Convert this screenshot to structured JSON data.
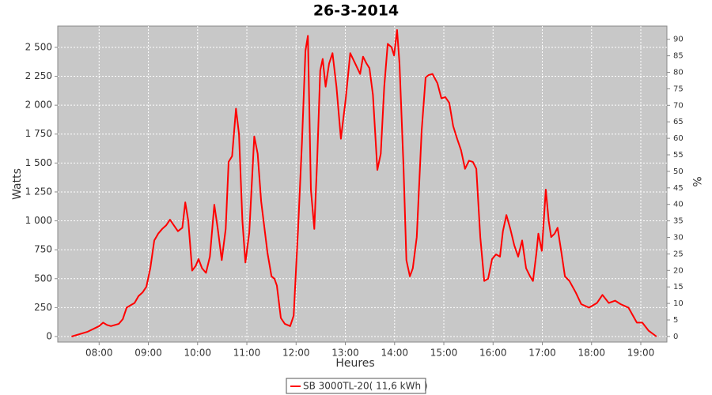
{
  "chart_data": {
    "type": "line",
    "title": "26-3-2014",
    "x_label": "Heures",
    "y_label": "Watts",
    "y2_label": "%",
    "x": [
      7.44,
      7.76,
      8.0,
      8.08,
      8.16,
      8.24,
      8.4,
      8.48,
      8.56,
      8.64,
      8.72,
      8.8,
      8.88,
      8.96,
      9.04,
      9.12,
      9.2,
      9.28,
      9.36,
      9.44,
      9.52,
      9.6,
      9.69,
      9.75,
      9.81,
      9.89,
      9.96,
      10.02,
      10.09,
      10.17,
      10.25,
      10.34,
      10.41,
      10.49,
      10.57,
      10.63,
      10.7,
      10.78,
      10.84,
      10.91,
      10.97,
      11.05,
      11.15,
      11.22,
      11.29,
      11.42,
      11.5,
      11.56,
      11.61,
      11.69,
      11.77,
      11.88,
      11.95,
      12.04,
      12.12,
      12.19,
      12.24,
      12.3,
      12.37,
      12.43,
      12.49,
      12.54,
      12.6,
      12.67,
      12.74,
      12.82,
      12.91,
      13.01,
      13.1,
      13.2,
      13.3,
      13.36,
      13.43,
      13.49,
      13.56,
      13.65,
      13.72,
      13.79,
      13.86,
      13.94,
      13.99,
      14.05,
      14.1,
      14.18,
      14.24,
      14.31,
      14.37,
      14.45,
      14.55,
      14.63,
      14.69,
      14.77,
      14.87,
      14.95,
      15.03,
      15.11,
      15.19,
      15.27,
      15.35,
      15.43,
      15.51,
      15.59,
      15.66,
      15.74,
      15.82,
      15.9,
      15.98,
      16.06,
      16.14,
      16.2,
      16.27,
      16.35,
      16.43,
      16.51,
      16.59,
      16.67,
      16.75,
      16.81,
      16.88,
      16.92,
      16.99,
      17.07,
      17.13,
      17.18,
      17.25,
      17.31,
      17.39,
      17.46,
      17.55,
      17.68,
      17.79,
      17.95,
      18.11,
      18.22,
      18.35,
      18.48,
      18.59,
      18.75,
      18.92,
      19.03,
      19.16,
      19.32
    ],
    "series": [
      {
        "name": "SB 3000TL-20( 11,6 kWh )",
        "color": "#ff0000",
        "values": [
          0,
          40,
          90,
          120,
          100,
          90,
          110,
          150,
          250,
          270,
          290,
          350,
          380,
          430,
          590,
          830,
          890,
          930,
          960,
          1010,
          960,
          910,
          940,
          1160,
          1000,
          570,
          610,
          670,
          590,
          550,
          690,
          1140,
          930,
          660,
          930,
          1510,
          1560,
          1970,
          1750,
          1000,
          640,
          900,
          1730,
          1580,
          1170,
          720,
          520,
          500,
          440,
          160,
          110,
          90,
          180,
          930,
          1680,
          2470,
          2600,
          1270,
          930,
          1540,
          2300,
          2400,
          2160,
          2360,
          2450,
          2160,
          1710,
          2060,
          2450,
          2360,
          2270,
          2420,
          2360,
          2320,
          2090,
          1440,
          1580,
          2160,
          2530,
          2500,
          2430,
          2650,
          2360,
          1480,
          660,
          520,
          590,
          860,
          1780,
          2240,
          2260,
          2270,
          2190,
          2060,
          2070,
          2020,
          1820,
          1710,
          1610,
          1450,
          1520,
          1510,
          1450,
          860,
          480,
          500,
          670,
          710,
          690,
          910,
          1050,
          930,
          790,
          690,
          830,
          590,
          520,
          480,
          720,
          890,
          740,
          1270,
          1000,
          860,
          890,
          940,
          720,
          520,
          480,
          380,
          280,
          250,
          290,
          360,
          290,
          310,
          280,
          250,
          120,
          120,
          50,
          0
        ]
      }
    ],
    "xlim": [
      7.16,
      19.53
    ],
    "xticks": [
      {
        "value": 8,
        "label": "08:00"
      },
      {
        "value": 9,
        "label": "09:00"
      },
      {
        "value": 10,
        "label": "10:00"
      },
      {
        "value": 11,
        "label": "11:00"
      },
      {
        "value": 12,
        "label": "12:00"
      },
      {
        "value": 13,
        "label": "13:00"
      },
      {
        "value": 14,
        "label": "14:00"
      },
      {
        "value": 15,
        "label": "15:00"
      },
      {
        "value": 16,
        "label": "16:00"
      },
      {
        "value": 17,
        "label": "17:00"
      },
      {
        "value": 18,
        "label": "18:00"
      },
      {
        "value": 19,
        "label": "19:00"
      }
    ],
    "ylim": [
      -48,
      2684
    ],
    "yticks": [
      0,
      250,
      500,
      750,
      {
        "value": 1000,
        "label": "1 000"
      },
      {
        "value": 1250,
        "label": "1 250"
      },
      {
        "value": 1500,
        "label": "1 500"
      },
      {
        "value": 1750,
        "label": "1 750"
      },
      {
        "value": 2000,
        "label": "2 000"
      },
      {
        "value": 2250,
        "label": "2 250"
      },
      {
        "value": 2500,
        "label": "2 500"
      }
    ],
    "y2lim": [
      -1.7,
      94
    ],
    "y2ticks": [
      0,
      5,
      10,
      15,
      20,
      25,
      30,
      35,
      40,
      45,
      50,
      55,
      60,
      65,
      70,
      75,
      80,
      85,
      90
    ],
    "grid": true,
    "legend": "bottom"
  }
}
